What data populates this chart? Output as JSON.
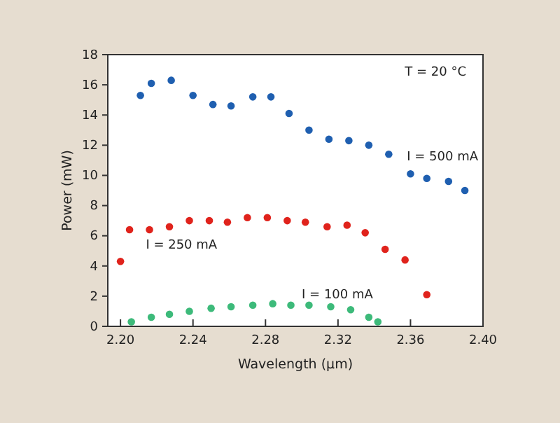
{
  "chart_data": {
    "type": "scatter",
    "xlabel": "Wavelength (µm)",
    "ylabel": "Power (mW)",
    "annotations": [
      "T = 20 °C"
    ],
    "xlim": [
      2.193,
      2.4
    ],
    "ylim": [
      0,
      18
    ],
    "xticks": [
      {
        "value": 2.2,
        "label": "2.20"
      },
      2.24,
      2.28,
      2.32,
      2.36,
      {
        "value": 2.4,
        "label": "2.40"
      }
    ],
    "yticks": [
      0,
      2,
      4,
      6,
      8,
      10,
      12,
      14,
      16,
      18
    ],
    "marker": "circle",
    "series": [
      {
        "name": "I = 500 mA",
        "color": "#1f5fb0",
        "x": [
          2.211,
          2.217,
          2.228,
          2.24,
          2.251,
          2.261,
          2.273,
          2.283,
          2.293,
          2.304,
          2.315,
          2.326,
          2.337,
          2.348,
          2.36,
          2.369,
          2.381,
          2.39
        ],
        "values": [
          15.3,
          16.1,
          16.3,
          15.3,
          14.7,
          14.6,
          15.2,
          15.2,
          14.1,
          13.0,
          12.4,
          12.3,
          12.0,
          11.4,
          10.1,
          9.8,
          9.6,
          9.0
        ]
      },
      {
        "name": "I = 250 mA",
        "color": "#e0231c",
        "x": [
          2.2,
          2.205,
          2.216,
          2.227,
          2.238,
          2.249,
          2.259,
          2.27,
          2.281,
          2.292,
          2.302,
          2.314,
          2.325,
          2.335,
          2.346,
          2.357,
          2.369
        ],
        "values": [
          4.3,
          6.4,
          6.4,
          6.6,
          7.0,
          7.0,
          6.9,
          7.2,
          7.2,
          7.0,
          6.9,
          6.6,
          6.7,
          6.2,
          5.1,
          4.4,
          2.1
        ]
      },
      {
        "name": "I = 100 mA",
        "color": "#3dba7a",
        "x": [
          2.206,
          2.217,
          2.227,
          2.238,
          2.25,
          2.261,
          2.273,
          2.284,
          2.294,
          2.304,
          2.316,
          2.327,
          2.337,
          2.342
        ],
        "values": [
          0.3,
          0.6,
          0.8,
          1.0,
          1.2,
          1.3,
          1.4,
          1.5,
          1.4,
          1.4,
          1.3,
          1.1,
          0.6,
          0.3
        ]
      }
    ]
  }
}
